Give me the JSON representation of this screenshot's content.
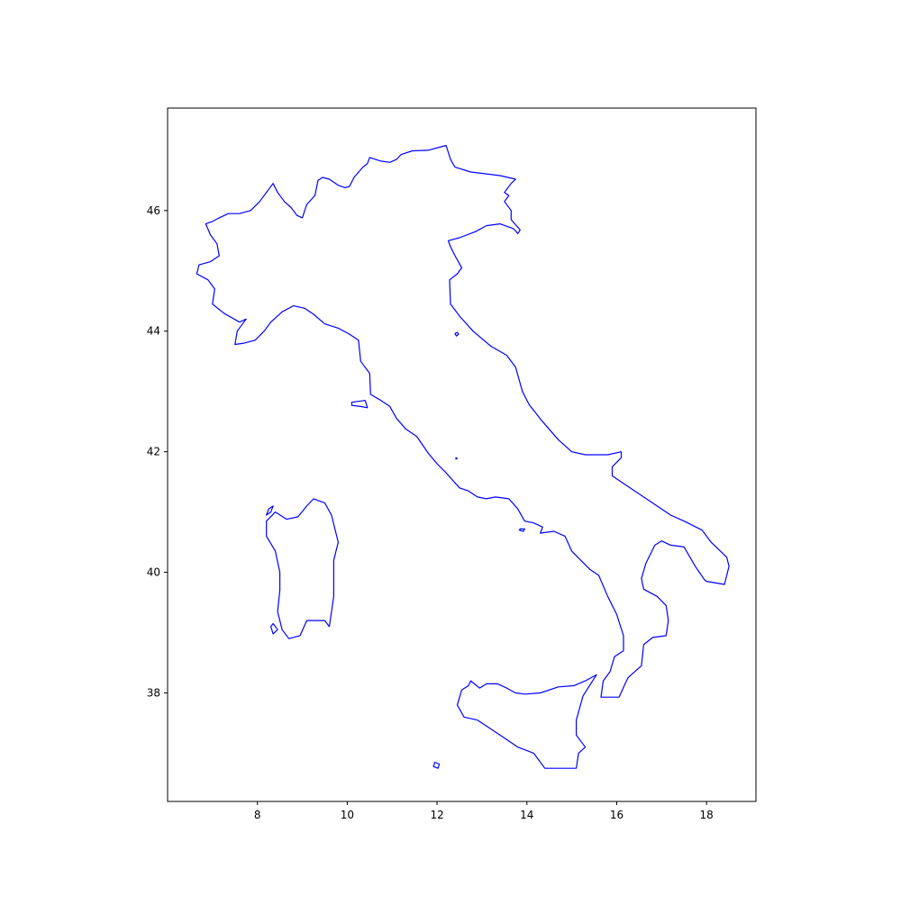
{
  "chart_data": {
    "type": "map",
    "title": "",
    "xlabel": "",
    "ylabel": "",
    "xlim": [
      6.0,
      19.1
    ],
    "ylim": [
      36.2,
      47.7
    ],
    "grid": false,
    "x_ticks": [
      "8",
      "10",
      "12",
      "14",
      "16",
      "18"
    ],
    "y_ticks": [
      "38",
      "40",
      "42",
      "44",
      "46"
    ],
    "outline_color": "#0000ff",
    "regions": [
      {
        "name": "mainland",
        "coords": [
          [
            12.2,
            47.08
          ],
          [
            12.05,
            47.05
          ],
          [
            11.8,
            47.0
          ],
          [
            11.45,
            46.99
          ],
          [
            11.2,
            46.93
          ],
          [
            11.1,
            46.85
          ],
          [
            10.95,
            46.8
          ],
          [
            10.75,
            46.82
          ],
          [
            10.5,
            46.88
          ],
          [
            10.45,
            46.78
          ],
          [
            10.35,
            46.72
          ],
          [
            10.15,
            46.55
          ],
          [
            10.05,
            46.4
          ],
          [
            9.95,
            46.38
          ],
          [
            9.8,
            46.42
          ],
          [
            9.6,
            46.52
          ],
          [
            9.45,
            46.55
          ],
          [
            9.35,
            46.5
          ],
          [
            9.28,
            46.25
          ],
          [
            9.1,
            46.1
          ],
          [
            9.0,
            45.88
          ],
          [
            8.88,
            45.92
          ],
          [
            8.75,
            46.05
          ],
          [
            8.6,
            46.15
          ],
          [
            8.45,
            46.3
          ],
          [
            8.35,
            46.45
          ],
          [
            8.2,
            46.3
          ],
          [
            8.05,
            46.15
          ],
          [
            7.85,
            46.0
          ],
          [
            7.6,
            45.95
          ],
          [
            7.35,
            45.95
          ],
          [
            7.15,
            45.88
          ],
          [
            7.0,
            45.82
          ],
          [
            6.85,
            45.78
          ],
          [
            6.95,
            45.6
          ],
          [
            7.1,
            45.45
          ],
          [
            7.15,
            45.25
          ],
          [
            6.95,
            45.15
          ],
          [
            6.7,
            45.1
          ],
          [
            6.65,
            44.95
          ],
          [
            6.9,
            44.85
          ],
          [
            7.05,
            44.7
          ],
          [
            7.0,
            44.45
          ],
          [
            7.25,
            44.3
          ],
          [
            7.6,
            44.15
          ],
          [
            7.75,
            44.2
          ],
          [
            7.55,
            44.0
          ],
          [
            7.5,
            43.78
          ],
          [
            7.7,
            43.8
          ],
          [
            7.95,
            43.85
          ],
          [
            8.15,
            44.0
          ],
          [
            8.3,
            44.15
          ],
          [
            8.55,
            44.32
          ],
          [
            8.8,
            44.42
          ],
          [
            9.05,
            44.38
          ],
          [
            9.25,
            44.28
          ],
          [
            9.5,
            44.12
          ],
          [
            9.8,
            44.05
          ],
          [
            10.05,
            43.95
          ],
          [
            10.25,
            43.85
          ],
          [
            10.3,
            43.5
          ],
          [
            10.5,
            43.3
          ],
          [
            10.52,
            42.95
          ],
          [
            10.75,
            42.85
          ],
          [
            10.95,
            42.75
          ],
          [
            11.1,
            42.55
          ],
          [
            11.3,
            42.38
          ],
          [
            11.55,
            42.25
          ],
          [
            11.8,
            41.98
          ],
          [
            12.0,
            41.8
          ],
          [
            12.2,
            41.65
          ],
          [
            12.5,
            41.4
          ],
          [
            12.7,
            41.35
          ],
          [
            12.9,
            41.25
          ],
          [
            13.1,
            41.22
          ],
          [
            13.3,
            41.25
          ],
          [
            13.6,
            41.22
          ],
          [
            13.8,
            41.05
          ],
          [
            13.95,
            40.85
          ],
          [
            14.15,
            40.82
          ],
          [
            14.35,
            40.75
          ],
          [
            14.3,
            40.65
          ],
          [
            14.6,
            40.68
          ],
          [
            14.85,
            40.6
          ],
          [
            15.0,
            40.35
          ],
          [
            15.2,
            40.2
          ],
          [
            15.4,
            40.05
          ],
          [
            15.6,
            39.95
          ],
          [
            15.8,
            39.6
          ],
          [
            16.0,
            39.3
          ],
          [
            16.15,
            38.95
          ],
          [
            16.15,
            38.7
          ],
          [
            15.95,
            38.6
          ],
          [
            15.85,
            38.35
          ],
          [
            15.7,
            38.2
          ],
          [
            15.65,
            37.93
          ],
          [
            16.05,
            37.93
          ],
          [
            16.25,
            38.25
          ],
          [
            16.55,
            38.45
          ],
          [
            16.6,
            38.8
          ],
          [
            16.8,
            38.92
          ],
          [
            17.1,
            38.95
          ],
          [
            17.15,
            39.2
          ],
          [
            17.1,
            39.45
          ],
          [
            16.9,
            39.6
          ],
          [
            16.6,
            39.72
          ],
          [
            16.55,
            39.9
          ],
          [
            16.65,
            40.15
          ],
          [
            16.85,
            40.45
          ],
          [
            17.0,
            40.52
          ],
          [
            17.2,
            40.45
          ],
          [
            17.5,
            40.42
          ],
          [
            17.75,
            40.1
          ],
          [
            17.95,
            39.88
          ],
          [
            18.0,
            39.85
          ],
          [
            18.4,
            39.8
          ],
          [
            18.5,
            40.1
          ],
          [
            18.45,
            40.25
          ],
          [
            18.1,
            40.5
          ],
          [
            17.9,
            40.7
          ],
          [
            17.5,
            40.85
          ],
          [
            17.2,
            40.95
          ],
          [
            16.9,
            41.1
          ],
          [
            16.6,
            41.25
          ],
          [
            16.2,
            41.45
          ],
          [
            15.9,
            41.6
          ],
          [
            15.9,
            41.75
          ],
          [
            16.1,
            41.9
          ],
          [
            16.1,
            42.0
          ],
          [
            15.8,
            41.95
          ],
          [
            15.3,
            41.95
          ],
          [
            15.0,
            42.0
          ],
          [
            14.7,
            42.2
          ],
          [
            14.35,
            42.5
          ],
          [
            14.05,
            42.78
          ],
          [
            13.9,
            43.0
          ],
          [
            13.75,
            43.4
          ],
          [
            13.55,
            43.6
          ],
          [
            13.2,
            43.75
          ],
          [
            12.8,
            44.0
          ],
          [
            12.5,
            44.25
          ],
          [
            12.3,
            44.45
          ],
          [
            12.28,
            44.85
          ],
          [
            12.45,
            44.95
          ],
          [
            12.55,
            45.05
          ],
          [
            12.4,
            45.25
          ],
          [
            12.3,
            45.4
          ],
          [
            12.25,
            45.5
          ],
          [
            12.5,
            45.55
          ],
          [
            12.85,
            45.65
          ],
          [
            13.1,
            45.75
          ],
          [
            13.4,
            45.78
          ],
          [
            13.7,
            45.7
          ],
          [
            13.8,
            45.62
          ],
          [
            13.85,
            45.68
          ],
          [
            13.65,
            45.85
          ],
          [
            13.65,
            46.0
          ],
          [
            13.5,
            46.15
          ],
          [
            13.6,
            46.25
          ],
          [
            13.5,
            46.3
          ],
          [
            13.65,
            46.45
          ],
          [
            13.75,
            46.52
          ],
          [
            13.4,
            46.58
          ],
          [
            12.75,
            46.64
          ],
          [
            12.4,
            46.72
          ],
          [
            12.3,
            46.85
          ],
          [
            12.2,
            47.08
          ]
        ]
      },
      {
        "name": "sicily",
        "coords": [
          [
            12.45,
            37.8
          ],
          [
            12.55,
            38.05
          ],
          [
            12.7,
            38.12
          ],
          [
            12.75,
            38.2
          ],
          [
            12.95,
            38.08
          ],
          [
            13.1,
            38.15
          ],
          [
            13.35,
            38.15
          ],
          [
            13.55,
            38.08
          ],
          [
            13.75,
            38.0
          ],
          [
            13.95,
            37.98
          ],
          [
            14.3,
            38.0
          ],
          [
            14.7,
            38.1
          ],
          [
            15.05,
            38.12
          ],
          [
            15.3,
            38.2
          ],
          [
            15.55,
            38.3
          ],
          [
            15.25,
            37.95
          ],
          [
            15.1,
            37.55
          ],
          [
            15.1,
            37.3
          ],
          [
            15.3,
            37.1
          ],
          [
            15.15,
            37.0
          ],
          [
            15.1,
            36.75
          ],
          [
            14.7,
            36.75
          ],
          [
            14.4,
            36.75
          ],
          [
            14.15,
            37.0
          ],
          [
            13.8,
            37.1
          ],
          [
            13.4,
            37.3
          ],
          [
            13.1,
            37.45
          ],
          [
            12.9,
            37.55
          ],
          [
            12.6,
            37.6
          ],
          [
            12.45,
            37.8
          ]
        ]
      },
      {
        "name": "sardinia",
        "coords": [
          [
            8.4,
            41.0
          ],
          [
            8.65,
            40.88
          ],
          [
            8.9,
            40.92
          ],
          [
            9.1,
            41.1
          ],
          [
            9.25,
            41.22
          ],
          [
            9.5,
            41.15
          ],
          [
            9.65,
            40.95
          ],
          [
            9.8,
            40.5
          ],
          [
            9.7,
            40.2
          ],
          [
            9.7,
            39.6
          ],
          [
            9.6,
            39.1
          ],
          [
            9.5,
            39.2
          ],
          [
            9.1,
            39.2
          ],
          [
            8.95,
            38.95
          ],
          [
            8.7,
            38.9
          ],
          [
            8.55,
            39.05
          ],
          [
            8.45,
            39.35
          ],
          [
            8.5,
            39.7
          ],
          [
            8.5,
            40.0
          ],
          [
            8.4,
            40.35
          ],
          [
            8.2,
            40.6
          ],
          [
            8.2,
            40.85
          ],
          [
            8.4,
            41.0
          ]
        ]
      },
      {
        "name": "elba",
        "coords": [
          [
            10.1,
            42.82
          ],
          [
            10.4,
            42.85
          ],
          [
            10.45,
            42.73
          ],
          [
            10.3,
            42.75
          ],
          [
            10.1,
            42.77
          ],
          [
            10.1,
            42.82
          ]
        ]
      },
      {
        "name": "sardinia-southwest-island",
        "coords": [
          [
            8.35,
            39.15
          ],
          [
            8.45,
            39.05
          ],
          [
            8.35,
            38.98
          ],
          [
            8.3,
            39.1
          ],
          [
            8.35,
            39.15
          ]
        ]
      },
      {
        "name": "sardinia-northwest-island",
        "coords": [
          [
            8.25,
            41.05
          ],
          [
            8.35,
            41.1
          ],
          [
            8.3,
            41.0
          ],
          [
            8.2,
            40.95
          ],
          [
            8.25,
            41.05
          ]
        ]
      },
      {
        "name": "capri",
        "coords": [
          [
            13.85,
            40.72
          ],
          [
            13.95,
            40.72
          ],
          [
            13.92,
            40.68
          ],
          [
            13.83,
            40.7
          ],
          [
            13.85,
            40.72
          ]
        ]
      },
      {
        "name": "venice-islet",
        "coords": [
          [
            12.45,
            43.98
          ],
          [
            12.48,
            43.95
          ],
          [
            12.43,
            43.92
          ],
          [
            12.4,
            43.96
          ],
          [
            12.45,
            43.98
          ]
        ]
      },
      {
        "name": "pantelleria",
        "coords": [
          [
            11.95,
            36.85
          ],
          [
            12.05,
            36.82
          ],
          [
            12.02,
            36.75
          ],
          [
            11.92,
            36.78
          ],
          [
            11.95,
            36.85
          ]
        ]
      },
      {
        "name": "ponza",
        "coords": [
          [
            12.42,
            41.9
          ],
          [
            12.44,
            41.9
          ],
          [
            12.44,
            41.88
          ],
          [
            12.42,
            41.88
          ],
          [
            12.42,
            41.9
          ]
        ]
      }
    ]
  }
}
